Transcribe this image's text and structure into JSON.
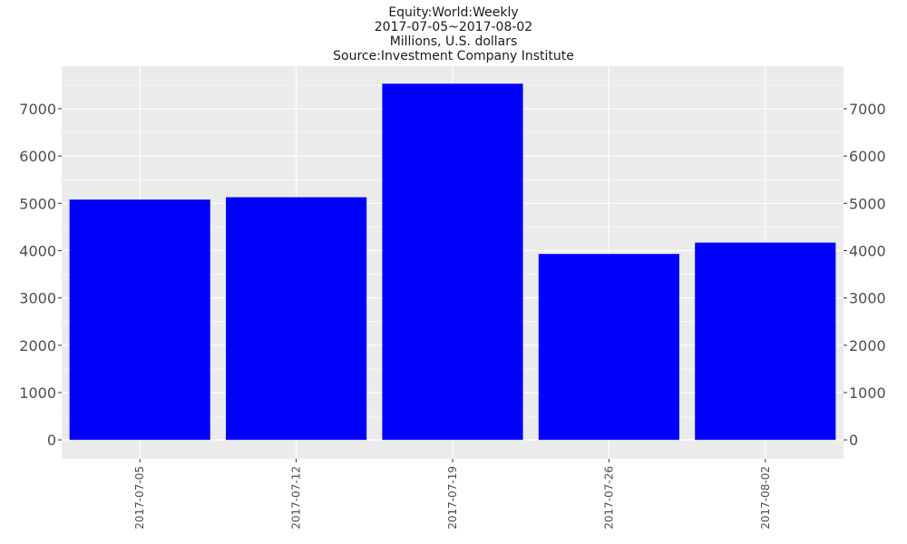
{
  "chart_data": {
    "type": "bar",
    "title_lines": [
      "Equity:World:Weekly",
      "2017-07-05~2017-08-02",
      "Millions, U.S. dollars",
      "Source:Investment Company Institute"
    ],
    "categories": [
      "2017-07-05",
      "2017-07-12",
      "2017-07-19",
      "2017-07-26",
      "2017-08-02"
    ],
    "values": [
      5080,
      5130,
      7530,
      3930,
      4170
    ],
    "ylim": [
      -400,
      7900
    ],
    "yticks": [
      0,
      1000,
      2000,
      3000,
      4000,
      5000,
      6000,
      7000
    ],
    "secondary_y_axis": true,
    "grid": true,
    "legend": "none",
    "bar_color": "#0000ff",
    "panel_background": "#ebebeb",
    "grid_color": "#ffffff"
  }
}
